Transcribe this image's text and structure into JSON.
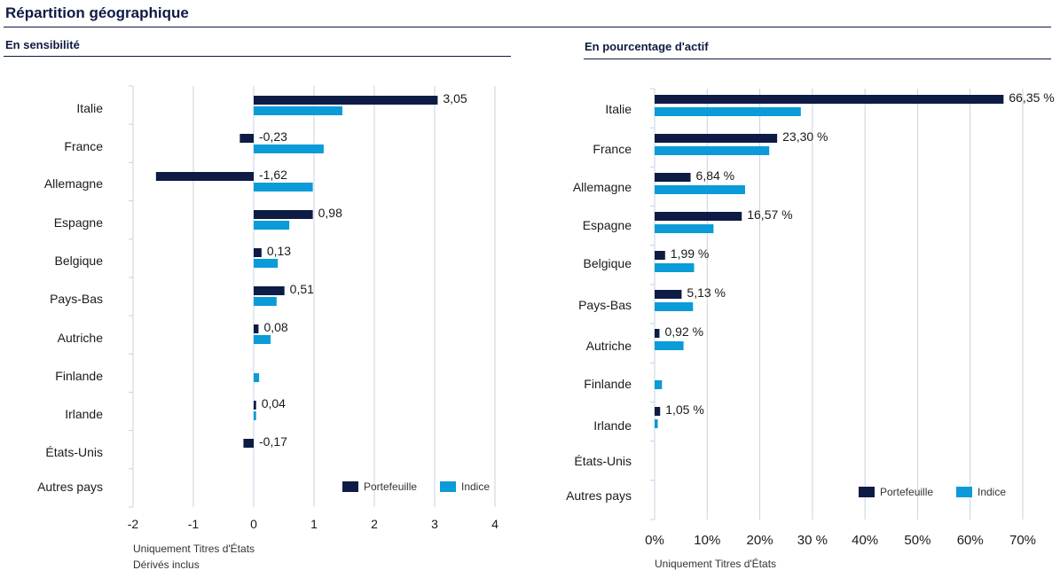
{
  "title": "Répartition  géographique",
  "colors": {
    "portefeuille": "#0d1b45",
    "indice": "#0a9bd8",
    "grid": "#c8d3e0"
  },
  "legend": {
    "portefeuille": "Portefeuille",
    "indice": "Indice"
  },
  "left": {
    "subtitle": "En  sensibilité",
    "notes": [
      "Uniquement Titres d'États",
      "Dérivés inclus"
    ]
  },
  "right": {
    "subtitle": "En  pourcentage d'actif",
    "notes": [
      "Uniquement Titres d'États"
    ]
  },
  "chart_data": [
    {
      "type": "bar",
      "orientation": "horizontal",
      "title": "En  sensibilité",
      "categories": [
        "Italie",
        "France",
        "Allemagne",
        "Espagne",
        "Belgique",
        "Pays-Bas",
        "Autriche",
        "Finlande",
        "Irlande",
        "États-Unis",
        "Autres pays"
      ],
      "series": [
        {
          "name": "Portefeuille",
          "values": [
            3.05,
            -0.23,
            -1.62,
            0.98,
            0.13,
            0.51,
            0.08,
            null,
            0.04,
            -0.17,
            null
          ],
          "labels": [
            "3,05",
            "-0,23",
            "-1,62",
            "0,98",
            "0,13",
            "0,51",
            "0,08",
            "",
            "0,04",
            "-0,17",
            ""
          ]
        },
        {
          "name": "Indice",
          "values": [
            1.47,
            1.16,
            0.98,
            0.59,
            0.4,
            0.38,
            0.28,
            0.09,
            0.04,
            null,
            null
          ]
        }
      ],
      "xlim": [
        -2,
        4
      ],
      "xticks": [
        "-2",
        "-1",
        "0",
        "1",
        "2",
        "3",
        "4"
      ],
      "grid": true,
      "legend_position": "bottom-right"
    },
    {
      "type": "bar",
      "orientation": "horizontal",
      "title": "En  pourcentage d'actif",
      "categories": [
        "Italie",
        "France",
        "Allemagne",
        "Espagne",
        "Belgique",
        "Pays-Bas",
        "Autriche",
        "Finlande",
        "Irlande",
        "États-Unis",
        "Autres pays"
      ],
      "series": [
        {
          "name": "Portefeuille",
          "values": [
            66.35,
            23.3,
            6.84,
            16.57,
            1.99,
            5.13,
            0.92,
            null,
            1.05,
            null,
            null
          ],
          "labels": [
            "66,35 %",
            "23,30 %",
            "6,84 %",
            "16,57 %",
            "1,99 %",
            "5,13 %",
            "0,92 %",
            "",
            "1,05 %",
            "",
            ""
          ]
        },
        {
          "name": "Indice",
          "values": [
            27.8,
            21.8,
            17.2,
            11.2,
            7.5,
            7.3,
            5.5,
            1.4,
            0.6,
            null,
            null
          ]
        }
      ],
      "xlim": [
        0,
        70
      ],
      "xticks": [
        "0%",
        "10%",
        "20%",
        "30 %",
        "40%",
        "50%",
        "60%",
        "70%"
      ],
      "grid": true,
      "legend_position": "bottom-right"
    }
  ]
}
